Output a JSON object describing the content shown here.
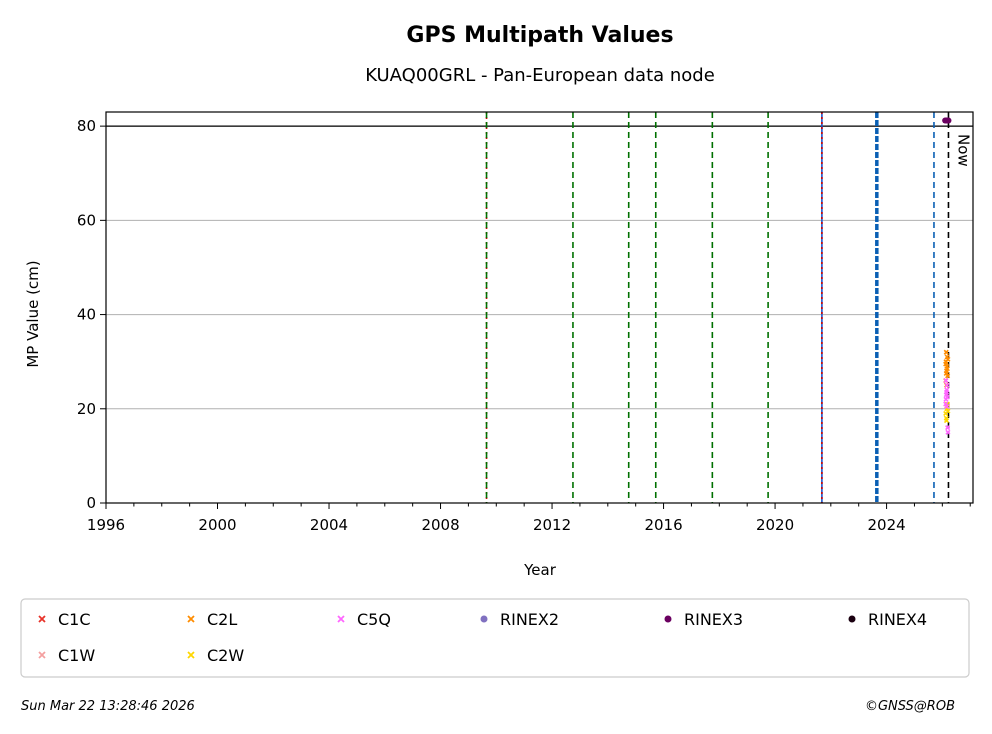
{
  "chart_data": {
    "type": "scatter",
    "title": "GPS Multipath Values",
    "subtitle": "KUAQ00GRL - Pan-European data node",
    "xlabel": "Year",
    "ylabel": "MP Value (cm)",
    "xlim": [
      1996,
      2027.1
    ],
    "ylim": [
      0,
      83
    ],
    "xticks": [
      1996,
      2000,
      2004,
      2008,
      2012,
      2016,
      2020,
      2024
    ],
    "yticks": [
      0,
      20,
      40,
      60,
      80
    ],
    "grid": "y",
    "hline": 80,
    "now_label": "Now",
    "now_x": 2026.22,
    "vlines": [
      {
        "x": 2009.65,
        "color": "#cc0000",
        "style": "dotted"
      },
      {
        "x": 2009.65,
        "color": "#007000",
        "style": "dashed"
      },
      {
        "x": 2012.75,
        "color": "#007000",
        "style": "dashed"
      },
      {
        "x": 2014.75,
        "color": "#007000",
        "style": "dashed"
      },
      {
        "x": 2015.72,
        "color": "#007000",
        "style": "dashed"
      },
      {
        "x": 2017.75,
        "color": "#007000",
        "style": "dashed"
      },
      {
        "x": 2019.75,
        "color": "#007000",
        "style": "dashed"
      },
      {
        "x": 2021.68,
        "color": "#1a55cc",
        "style": "solid"
      },
      {
        "x": 2021.68,
        "color": "#cc0000",
        "style": "dotted"
      },
      {
        "x": 2023.65,
        "color": "#0a5fb4",
        "style": "thickdashed"
      },
      {
        "x": 2025.7,
        "color": "#0a5fb4",
        "style": "dashed"
      }
    ],
    "series": [
      {
        "name": "C1C",
        "color": "#e8332a",
        "marker": "x",
        "points": []
      },
      {
        "name": "C1W",
        "color": "#f4a0a0",
        "marker": "x",
        "points": []
      },
      {
        "name": "C2L",
        "color": "#ff8c00",
        "marker": "x",
        "points": [
          [
            2026.12,
            26
          ],
          [
            2026.14,
            27.5
          ],
          [
            2026.15,
            28
          ],
          [
            2026.16,
            29
          ],
          [
            2026.13,
            30
          ],
          [
            2026.17,
            31
          ],
          [
            2026.15,
            25
          ],
          [
            2026.19,
            27
          ],
          [
            2026.14,
            32
          ],
          [
            2026.18,
            28.5
          ],
          [
            2026.2,
            30.5
          ],
          [
            2026.12,
            29.5
          ]
        ]
      },
      {
        "name": "C2W",
        "color": "#ffd700",
        "marker": "x",
        "points": [
          [
            2026.12,
            19
          ],
          [
            2026.14,
            18
          ],
          [
            2026.16,
            20
          ],
          [
            2026.18,
            21
          ],
          [
            2026.15,
            17.5
          ],
          [
            2026.2,
            19.5
          ]
        ]
      },
      {
        "name": "C5Q",
        "color": "#ff66ff",
        "marker": "x",
        "points": [
          [
            2026.13,
            22
          ],
          [
            2026.14,
            23
          ],
          [
            2026.16,
            24
          ],
          [
            2026.12,
            21
          ],
          [
            2026.18,
            22.5
          ],
          [
            2026.2,
            15
          ],
          [
            2026.17,
            25
          ],
          [
            2026.15,
            23.5
          ],
          [
            2026.19,
            16
          ],
          [
            2026.13,
            26
          ],
          [
            2026.16,
            20.5
          ]
        ]
      },
      {
        "name": "RINEX2",
        "color": "#8070c0",
        "marker": "dot",
        "points": []
      },
      {
        "name": "RINEX3",
        "color": "#6a0060",
        "marker": "dot",
        "points": [
          [
            2026.1,
            81.2
          ],
          [
            2026.13,
            81.2
          ],
          [
            2026.16,
            81.2
          ],
          [
            2026.19,
            81.2
          ],
          [
            2026.22,
            81.2
          ]
        ]
      },
      {
        "name": "RINEX4",
        "color": "#1a0010",
        "marker": "dot",
        "points": []
      }
    ]
  },
  "footer": {
    "timestamp": "Sun Mar 22 13:28:46 2026",
    "credit": "©GNSS@ROB"
  }
}
